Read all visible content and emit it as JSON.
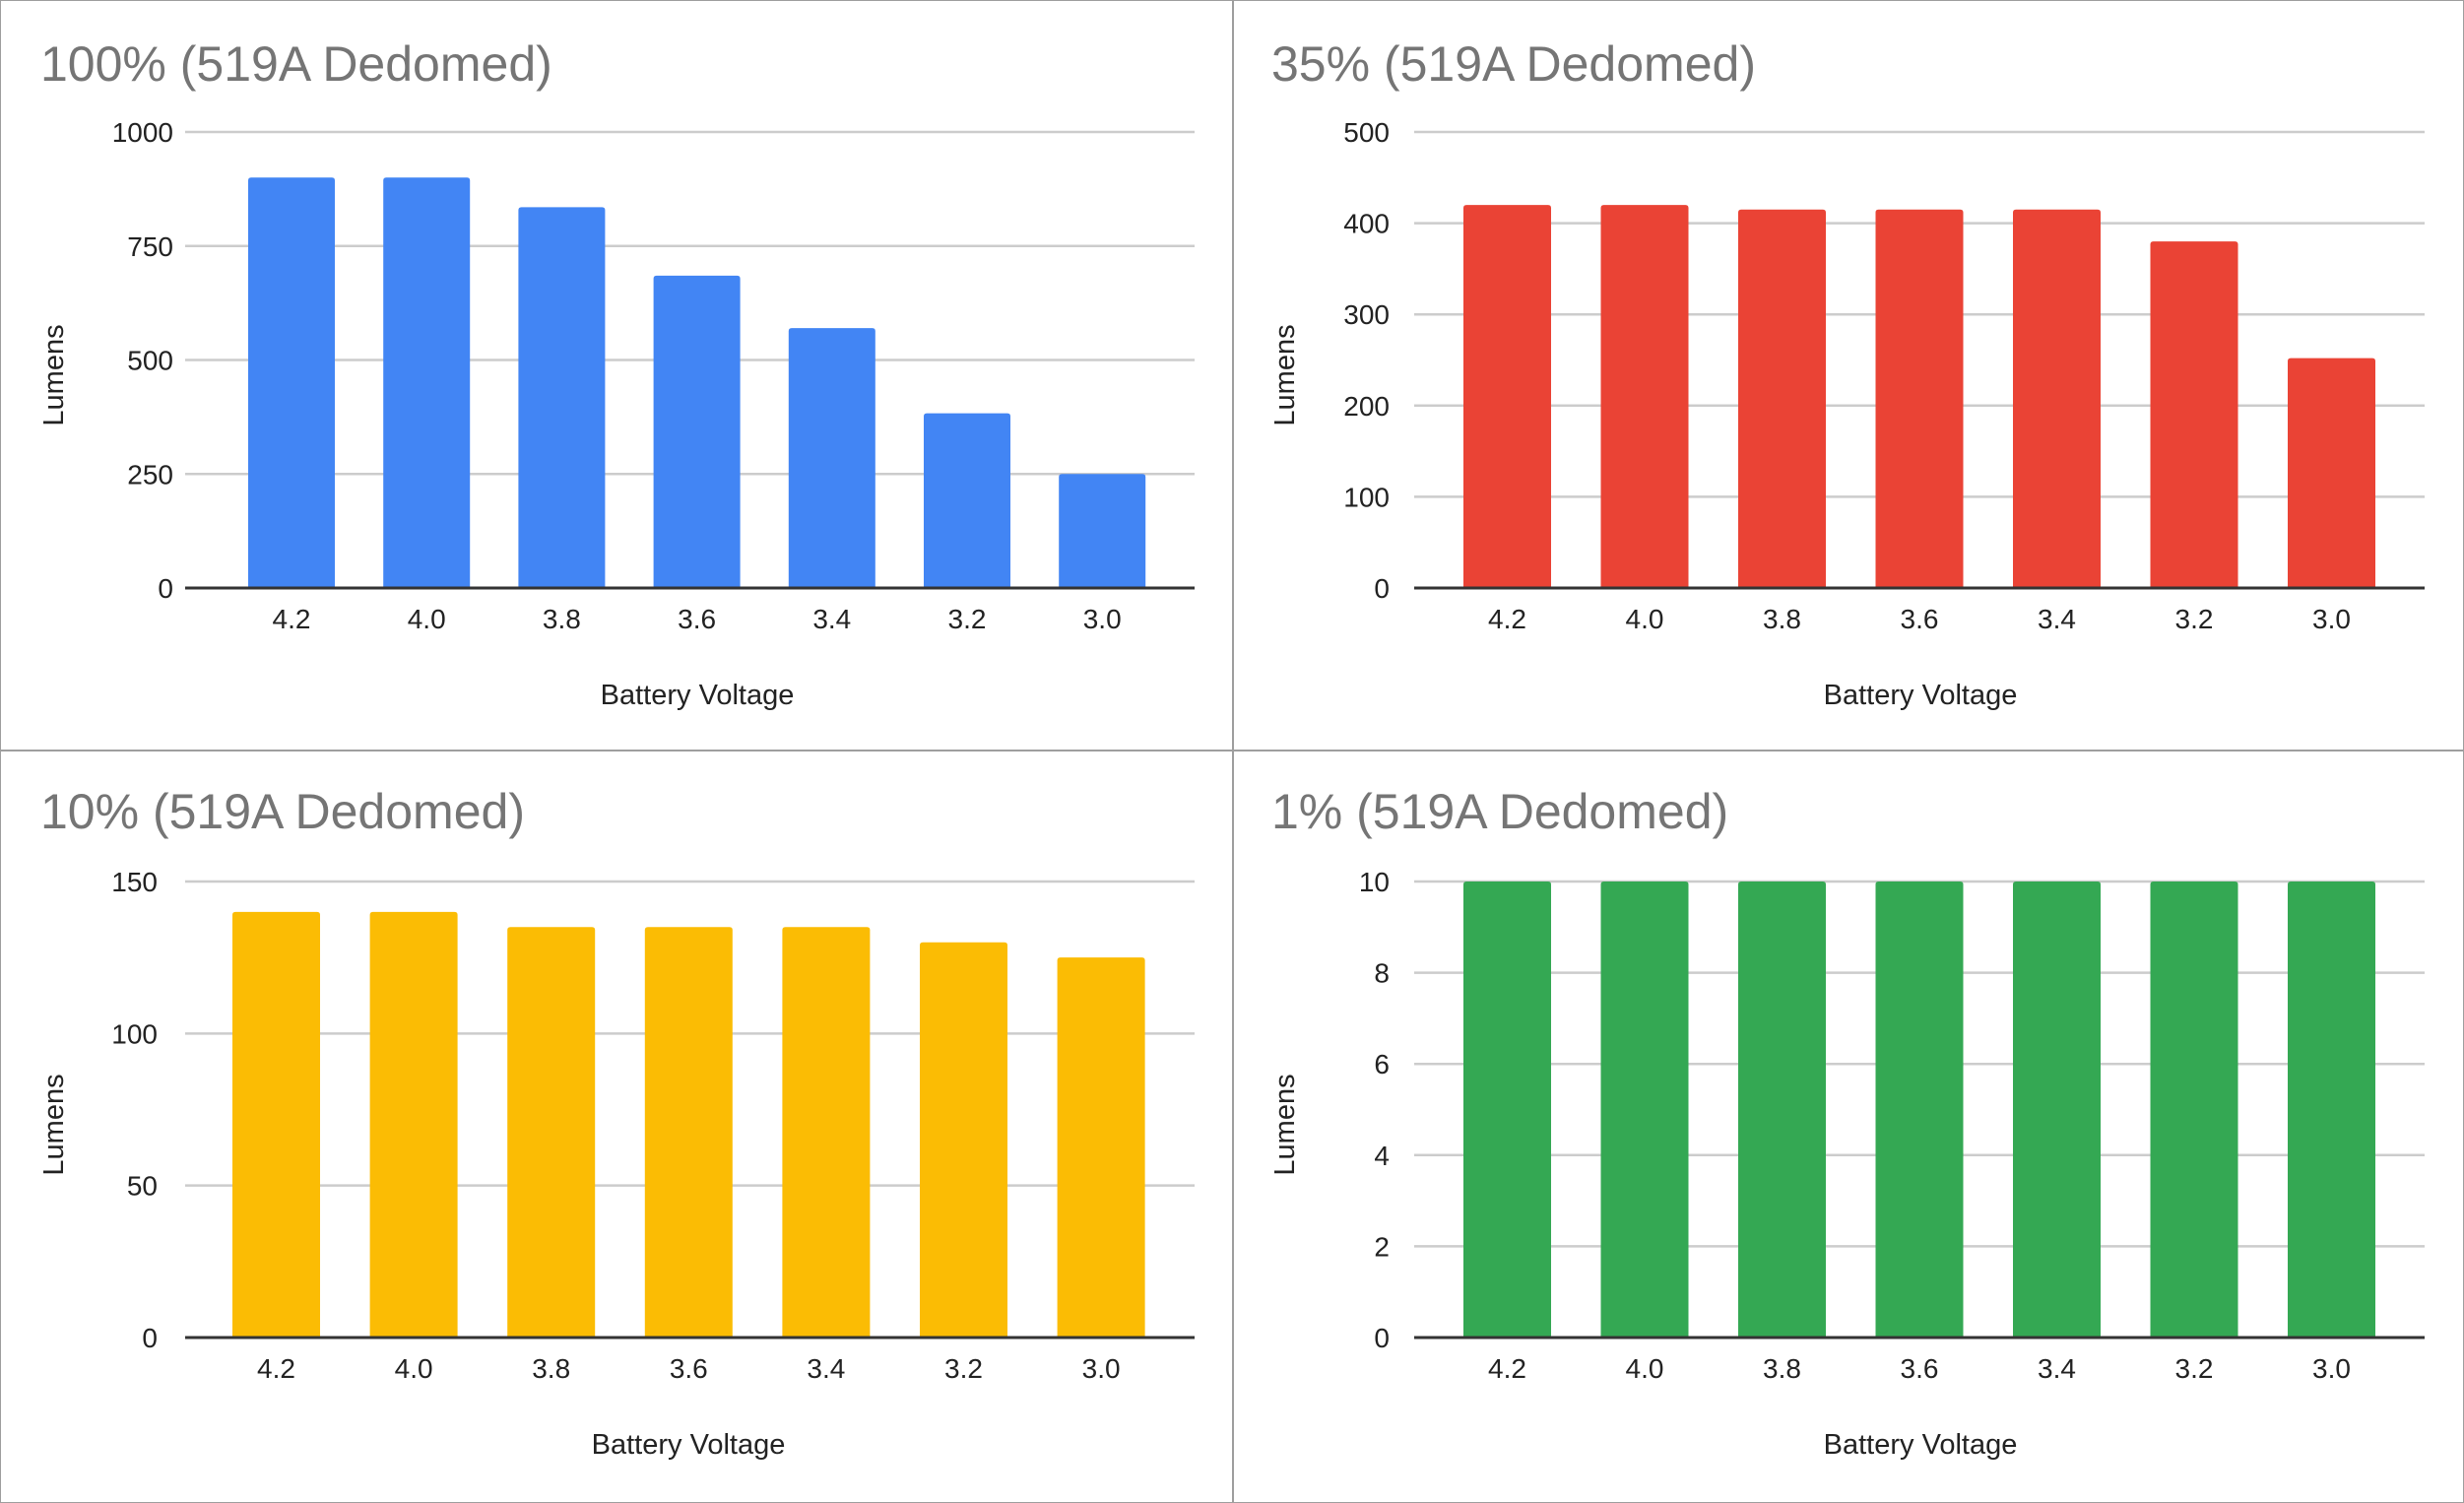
{
  "chart_data": [
    {
      "type": "bar",
      "title": "100% (519A Dedomed)",
      "xlabel": "Battery Voltage",
      "ylabel": "Lumens",
      "categories": [
        "4.2",
        "4.0",
        "3.8",
        "3.6",
        "3.4",
        "3.2",
        "3.0"
      ],
      "values": [
        900,
        900,
        835,
        685,
        570,
        383,
        250
      ],
      "ylim": [
        0,
        1000
      ],
      "yticks": [
        0,
        250,
        500,
        750,
        1000
      ],
      "color": "#4285f4",
      "grid": true,
      "legend": "none"
    },
    {
      "type": "bar",
      "title": "35% (519A Dedomed)",
      "xlabel": "Battery Voltage",
      "ylabel": "Lumens",
      "categories": [
        "4.2",
        "4.0",
        "3.8",
        "3.6",
        "3.4",
        "3.2",
        "3.0"
      ],
      "values": [
        420,
        420,
        415,
        415,
        415,
        380,
        252
      ],
      "ylim": [
        0,
        500
      ],
      "yticks": [
        0,
        100,
        200,
        300,
        400,
        500
      ],
      "color": "#ea4335",
      "grid": true,
      "legend": "none"
    },
    {
      "type": "bar",
      "title": "10% (519A Dedomed)",
      "xlabel": "Battery Voltage",
      "ylabel": "Lumens",
      "categories": [
        "4.2",
        "4.0",
        "3.8",
        "3.6",
        "3.4",
        "3.2",
        "3.0"
      ],
      "values": [
        140,
        140,
        135,
        135,
        135,
        130,
        125
      ],
      "ylim": [
        0,
        150
      ],
      "yticks": [
        0,
        50,
        100,
        150
      ],
      "color": "#fbbc04",
      "grid": true,
      "legend": "none"
    },
    {
      "type": "bar",
      "title": "1% (519A Dedomed)",
      "xlabel": "Battery Voltage",
      "ylabel": "Lumens",
      "categories": [
        "4.2",
        "4.0",
        "3.8",
        "3.6",
        "3.4",
        "3.2",
        "3.0"
      ],
      "values": [
        10,
        10,
        10,
        10,
        10,
        10,
        10
      ],
      "ylim": [
        0,
        10
      ],
      "yticks": [
        0,
        2,
        4,
        6,
        8,
        10
      ],
      "color": "#34a853",
      "grid": true,
      "legend": "none"
    }
  ]
}
